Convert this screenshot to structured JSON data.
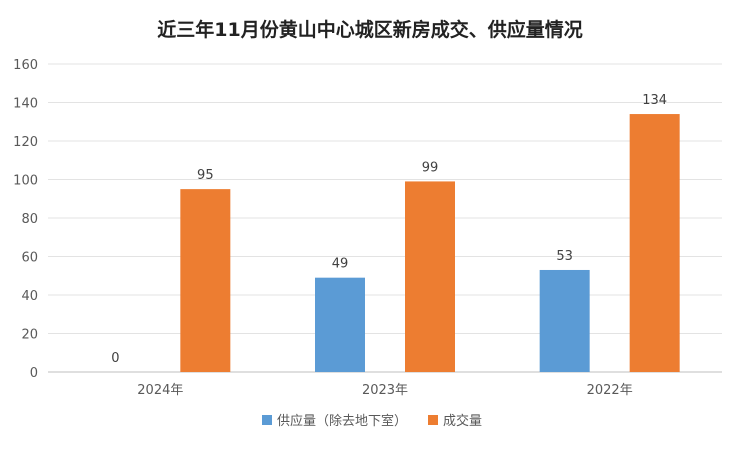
{
  "chart_data": {
    "type": "bar",
    "title": "近三年11月份黄山中心城区新房成交、供应量情况",
    "xlabel": "",
    "ylabel": "",
    "categories": [
      "2024年",
      "2023年",
      "2022年"
    ],
    "series": [
      {
        "name": "供应量（除去地下室）",
        "values": [
          0,
          49,
          53
        ],
        "color": "#5B9BD5"
      },
      {
        "name": "成交量",
        "values": [
          95,
          99,
          134
        ],
        "color": "#ED7D31"
      }
    ],
    "ylim": [
      0,
      160
    ],
    "yticks": [
      0,
      20,
      40,
      60,
      80,
      100,
      120,
      140,
      160
    ],
    "grid": true,
    "legend_position": "bottom"
  }
}
